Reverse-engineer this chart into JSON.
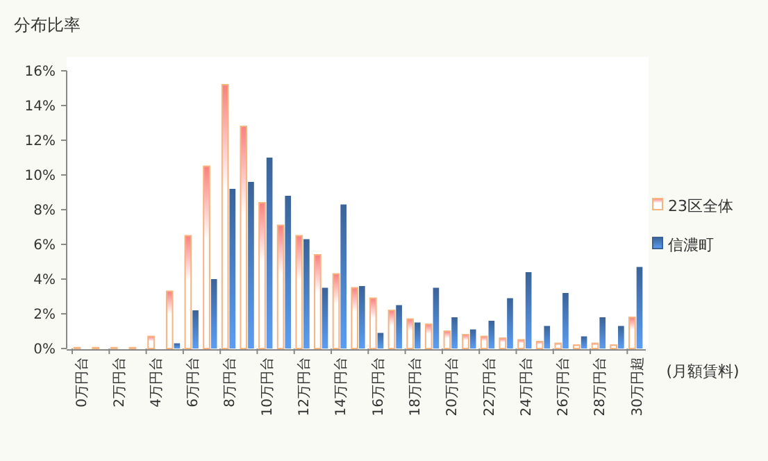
{
  "chart_data": {
    "type": "bar",
    "title": "分布比率",
    "xlabel": "(月額賃料)",
    "categories": [
      "0万円台",
      null,
      "2万円台",
      null,
      "4万円台",
      null,
      "6万円台",
      null,
      "8万円台",
      null,
      "10万円台",
      null,
      "12万円台",
      null,
      "14万円台",
      null,
      "16万円台",
      null,
      "18万円台",
      null,
      "20万円台",
      null,
      "22万円台",
      null,
      "24万円台",
      null,
      "26万円台",
      null,
      "28万円台",
      null,
      "30万円超"
    ],
    "series": [
      {
        "name": "23区全体",
        "color": "#f8b47f",
        "values": [
          0.05,
          0.05,
          0.05,
          0.05,
          0.7,
          3.3,
          6.5,
          10.5,
          15.2,
          12.8,
          8.4,
          7.1,
          6.5,
          5.4,
          4.3,
          3.5,
          2.9,
          2.2,
          1.7,
          1.4,
          1.0,
          0.8,
          0.7,
          0.6,
          0.5,
          0.4,
          0.3,
          0.2,
          0.3,
          0.2,
          1.8
        ]
      },
      {
        "name": "信濃町",
        "color": "#3a6398",
        "values": [
          0,
          0,
          0,
          0,
          0,
          0.3,
          2.2,
          4.0,
          9.2,
          9.6,
          11.0,
          8.8,
          6.3,
          3.5,
          8.3,
          3.6,
          0.9,
          2.5,
          1.5,
          3.5,
          1.8,
          1.1,
          1.6,
          2.9,
          4.4,
          1.3,
          3.2,
          0.7,
          1.8,
          1.3,
          4.7
        ]
      }
    ],
    "ylim": [
      0,
      16
    ],
    "yticks": [
      {
        "value": 0,
        "label": "0%"
      },
      {
        "value": 2,
        "label": "2%"
      },
      {
        "value": 4,
        "label": "4%"
      },
      {
        "value": 6,
        "label": "6%"
      },
      {
        "value": 8,
        "label": "8%"
      },
      {
        "value": 10,
        "label": "10%"
      },
      {
        "value": 12,
        "label": "12%"
      },
      {
        "value": 14,
        "label": "14%"
      },
      {
        "value": 16,
        "label": "16%"
      }
    ],
    "grid": false,
    "legend": "right"
  }
}
